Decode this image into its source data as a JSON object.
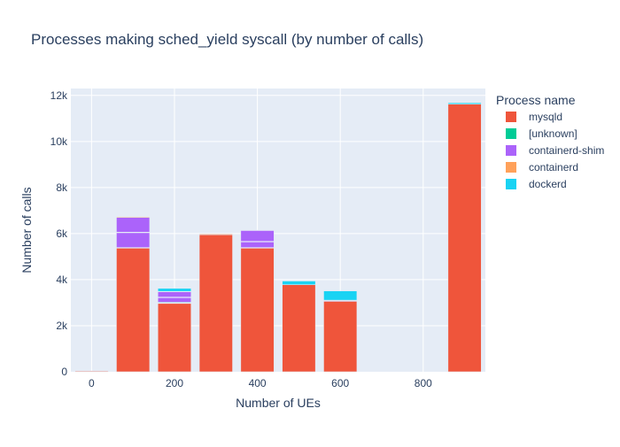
{
  "chart_data": {
    "type": "bar",
    "barmode": "stack",
    "title": "Processes making sched_yield syscall (by number of calls)",
    "xlabel": "Number of UEs",
    "ylabel": "Number of calls",
    "xlim": [
      -50,
      950
    ],
    "ylim": [
      0,
      12300
    ],
    "x_ticks": [
      0,
      200,
      400,
      600,
      800
    ],
    "x_tick_labels": [
      "0",
      "200",
      "400",
      "600",
      "800"
    ],
    "y_ticks": [
      0,
      2000,
      4000,
      6000,
      8000,
      10000,
      12000
    ],
    "y_tick_labels": [
      "0",
      "2k",
      "4k",
      "6k",
      "8k",
      "10k",
      "12k"
    ],
    "grid": true,
    "plot_background": "#E5ECF6",
    "legend": {
      "title": "Process name",
      "position": "right"
    },
    "x": [
      0,
      100,
      200,
      300,
      400,
      500,
      600,
      900
    ],
    "bar_width": 80,
    "series": [
      {
        "name": "mysqld",
        "color": "#EF553B",
        "values": [
          30,
          5380,
          2980,
          5950,
          5380,
          3780,
          3060,
          11620
        ]
      },
      {
        "name": "[unknown]",
        "color": "#00CC96",
        "values": [
          0,
          0,
          40,
          0,
          0,
          0,
          0,
          0
        ]
      },
      {
        "name": "containerd-shim",
        "color": "#AB63FA",
        "values": [
          0,
          1320,
          450,
          0,
          760,
          0,
          30,
          0
        ]
      },
      {
        "name": "containerd",
        "color": "#FFA15A",
        "values": [
          0,
          30,
          20,
          30,
          10,
          0,
          20,
          0
        ]
      },
      {
        "name": "dockerd",
        "color": "#19D3F3",
        "values": [
          0,
          0,
          130,
          0,
          0,
          160,
          400,
          60
        ]
      }
    ],
    "segment_splits": [
      [],
      [
        [
          0,
          5380,
          30
        ],
        [
          2,
          6050,
          20
        ]
      ],
      [
        [
          0,
          2980,
          20
        ],
        [
          2,
          3230,
          20
        ]
      ],
      [],
      [
        [
          0,
          5380,
          20
        ],
        [
          2,
          5650,
          20
        ]
      ],
      [],
      [],
      []
    ]
  }
}
